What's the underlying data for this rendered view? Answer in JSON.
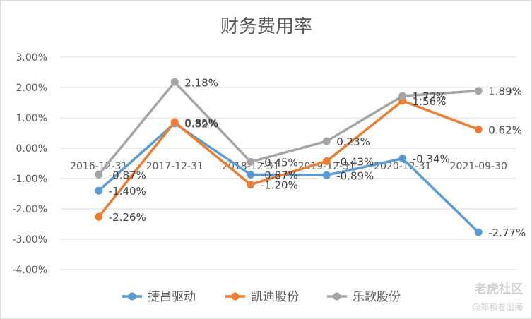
{
  "chart_data": {
    "type": "line",
    "title": "财务费用率",
    "categories": [
      "2016-12-31",
      "2017-12-31",
      "2018-12-31",
      "2019-12-31",
      "2020-12-31",
      "2021-09-30"
    ],
    "yticks": [
      "3.00%",
      "2.00%",
      "1.00%",
      "0.00%",
      "-1.00%",
      "-2.00%",
      "-3.00%",
      "-4.00%"
    ],
    "ylim": [
      -4,
      3
    ],
    "grid": true,
    "legend_position": "bottom",
    "series": [
      {
        "name": "捷昌驱动",
        "color": "#5b9bd5",
        "values": [
          -1.4,
          0.82,
          -0.87,
          -0.89,
          -0.34,
          -2.77
        ],
        "labels": [
          "-1.40%",
          "0.82%",
          "-0.87%",
          "-0.89%",
          "-0.34%",
          "-2.77%"
        ]
      },
      {
        "name": "凯迪股份",
        "color": "#ed7d31",
        "values": [
          -2.26,
          0.86,
          -1.2,
          -0.43,
          1.56,
          0.62
        ],
        "labels": [
          "-2.26%",
          "0.86%",
          "-1.20%",
          "-0.43%",
          "1.56%",
          "0.62%"
        ]
      },
      {
        "name": "乐歌股份",
        "color": "#a5a5a5",
        "values": [
          -0.87,
          2.18,
          -0.45,
          0.23,
          1.72,
          1.89
        ],
        "labels": [
          "-0.87%",
          "2.18%",
          "-0.45%",
          "0.23%",
          "1.72%",
          "1.89%"
        ]
      }
    ]
  },
  "watermark": {
    "brand": "老虎社区",
    "author": "@郑和看出海"
  }
}
